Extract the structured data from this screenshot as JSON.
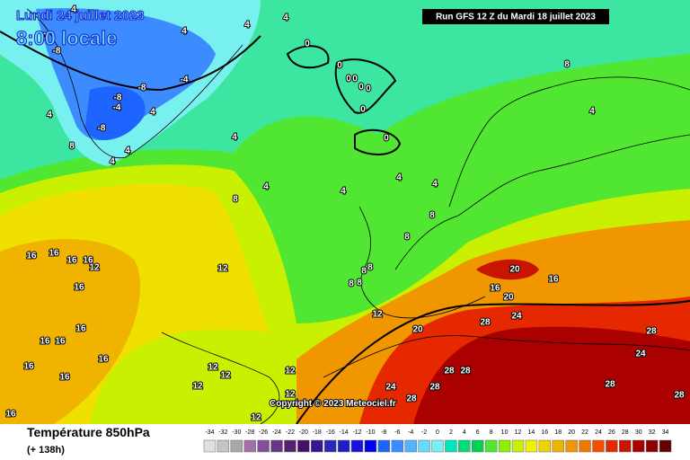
{
  "header": {
    "date": "Lundi 24 juillet 2023",
    "time": "8:00 locale",
    "run": "Run GFS 12 Z du Mardi 18 juillet 2023"
  },
  "footer": {
    "title": "Température 850hPa",
    "lead": "(+ 138h)",
    "copyright": "Copyright © 2023 Meteociel.fr"
  },
  "scale": {
    "values": [
      -34,
      -32,
      -30,
      -28,
      -26,
      -24,
      -22,
      -20,
      -18,
      -16,
      -14,
      -12,
      -10,
      -8,
      -6,
      -4,
      -2,
      0,
      2,
      4,
      6,
      8,
      10,
      12,
      14,
      16,
      18,
      20,
      22,
      24,
      26,
      28,
      30,
      32,
      34
    ],
    "colors": [
      "#e0e0e0",
      "#c4c4c4",
      "#a8a8a8",
      "#a070a8",
      "#84509a",
      "#6a3486",
      "#581e76",
      "#461066",
      "#3a1496",
      "#2828b4",
      "#1e1ec8",
      "#1414dc",
      "#0000f0",
      "#1e64ff",
      "#3c8cff",
      "#50b4ff",
      "#64dcff",
      "#78f0f0",
      "#00e6b4",
      "#00dc78",
      "#00d250",
      "#50e632",
      "#8cf000",
      "#c8f000",
      "#f0f000",
      "#f0d200",
      "#f0b400",
      "#f09600",
      "#f07800",
      "#f05000",
      "#e62800",
      "#c81400",
      "#aa0000",
      "#8c0000",
      "#640000"
    ]
  },
  "contour_labels": [
    16,
    16,
    16,
    16,
    12,
    16,
    16,
    16,
    16,
    16,
    16,
    16,
    16,
    12,
    8,
    4,
    4,
    4,
    4,
    4,
    8,
    8,
    8,
    8,
    8,
    8,
    12,
    20,
    28,
    24,
    16,
    20,
    20,
    16,
    28,
    28,
    28,
    24,
    28,
    28,
    24,
    28,
    28,
    12,
    12,
    12,
    12,
    12,
    12,
    8,
    4,
    0,
    0,
    0,
    0,
    0,
    0,
    0,
    0,
    -8,
    -8,
    -8,
    -4,
    -4,
    -8,
    4,
    8,
    4,
    4,
    4,
    0,
    4,
    4,
    4,
    4
  ]
}
